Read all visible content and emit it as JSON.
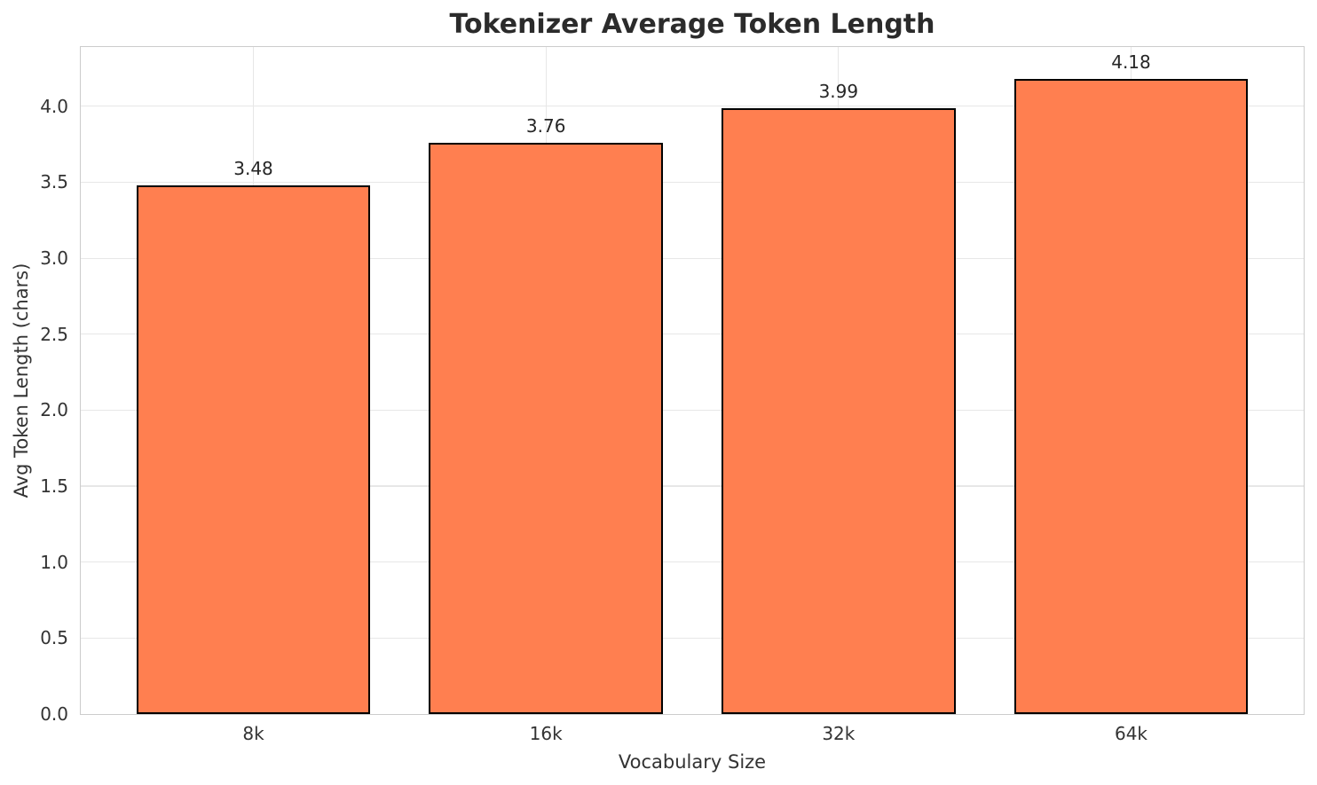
{
  "chart_data": {
    "type": "bar",
    "title": "Tokenizer Average Token Length",
    "xlabel": "Vocabulary Size",
    "ylabel": "Avg Token Length (chars)",
    "categories": [
      "8k",
      "16k",
      "32k",
      "64k"
    ],
    "values": [
      3.48,
      3.76,
      3.99,
      4.18
    ],
    "value_labels": [
      "3.48",
      "3.76",
      "3.99",
      "4.18"
    ],
    "ytick_values": [
      0,
      0.5,
      1,
      1.5,
      2,
      2.5,
      3,
      3.5,
      4
    ],
    "ytick_labels": [
      "0.0",
      "0.5",
      "1.0",
      "1.5",
      "2.0",
      "2.5",
      "3.0",
      "3.5",
      "4.0"
    ],
    "ylim": [
      0,
      4.39
    ],
    "xlim": [
      -0.59,
      3.59
    ],
    "bar_width": 0.8,
    "grid": true,
    "legend_position": "none",
    "colors": {
      "bar_fill": "#FF7F50",
      "bar_edge": "#000000",
      "grid_line": "#e7e7e7",
      "spine": "#cccccc",
      "title_text": "#2b2b2b",
      "label_text": "#333333"
    }
  }
}
